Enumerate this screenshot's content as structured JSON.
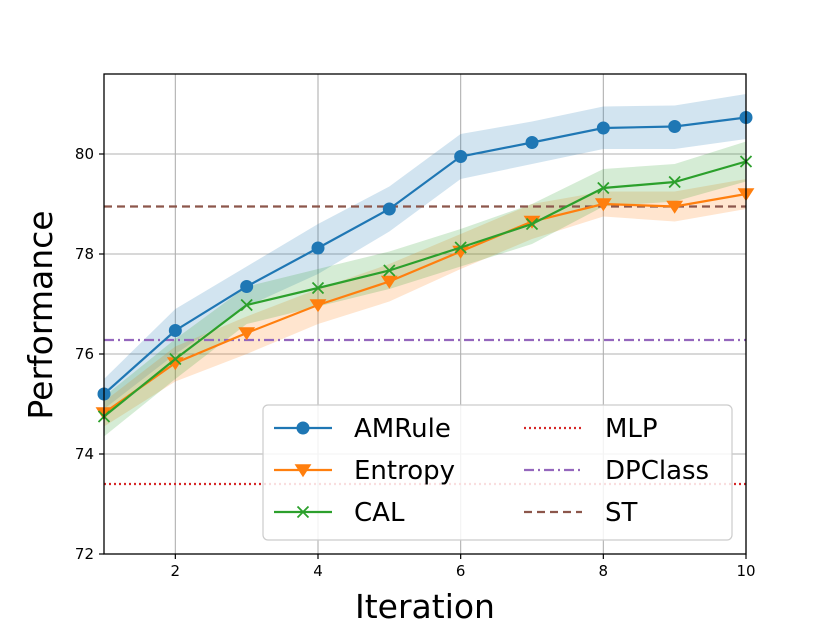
{
  "chart_data": {
    "type": "line",
    "title": "",
    "xlabel": "Iteration",
    "ylabel": "Performance",
    "xlim": [
      1,
      10
    ],
    "ylim": [
      72,
      81.6
    ],
    "xticks": [
      2,
      4,
      6,
      8,
      10
    ],
    "yticks": [
      72,
      74,
      76,
      78,
      80
    ],
    "grid": true,
    "legend_position": "lower-right",
    "x": [
      1,
      2,
      3,
      4,
      5,
      6,
      7,
      8,
      9,
      10
    ],
    "series": [
      {
        "name": "AMRule",
        "color": "#1f77b4",
        "marker": "circle",
        "values": [
          75.2,
          76.47,
          77.35,
          78.12,
          78.9,
          79.95,
          80.23,
          80.52,
          80.55,
          80.73
        ],
        "band_upper": [
          75.5,
          76.9,
          77.75,
          78.6,
          79.35,
          80.4,
          80.65,
          80.95,
          80.97,
          81.2
        ],
        "band_lower": [
          74.9,
          76.0,
          76.95,
          77.6,
          78.45,
          79.5,
          79.8,
          80.1,
          80.1,
          80.3
        ]
      },
      {
        "name": "Entropy",
        "color": "#ff7f0e",
        "marker": "triangle-down",
        "values": [
          74.82,
          75.82,
          76.42,
          76.98,
          77.45,
          78.05,
          78.65,
          79.0,
          78.95,
          79.2
        ],
        "band_upper": [
          75.05,
          76.15,
          76.75,
          77.3,
          77.8,
          78.4,
          79.0,
          79.25,
          79.25,
          79.5
        ],
        "band_lower": [
          74.55,
          75.45,
          76.0,
          76.6,
          77.05,
          77.7,
          78.3,
          78.75,
          78.65,
          78.9
        ]
      },
      {
        "name": "CAL",
        "color": "#2ca02c",
        "marker": "x",
        "values": [
          74.75,
          75.9,
          76.98,
          77.32,
          77.67,
          78.13,
          78.6,
          79.32,
          79.44,
          79.85
        ],
        "band_upper": [
          75.15,
          76.3,
          77.35,
          77.7,
          78.05,
          78.5,
          79.0,
          79.7,
          79.8,
          80.25
        ],
        "band_lower": [
          74.35,
          75.5,
          76.6,
          76.95,
          77.3,
          77.75,
          78.2,
          78.95,
          79.05,
          79.45
        ]
      }
    ],
    "baselines": [
      {
        "name": "MLP",
        "value": 73.4,
        "color": "#d62728",
        "style": "dotted"
      },
      {
        "name": "DPClass",
        "value": 76.28,
        "color": "#9467bd",
        "style": "dashdot"
      },
      {
        "name": "ST",
        "value": 78.95,
        "color": "#8c564b",
        "style": "dashed"
      }
    ]
  }
}
